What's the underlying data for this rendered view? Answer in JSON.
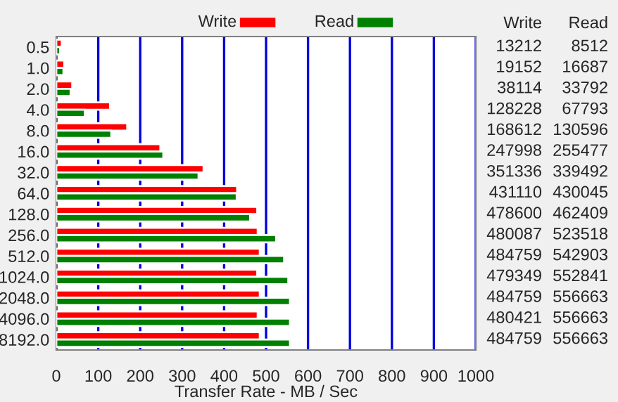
{
  "chart_data": [
    {
      "type": "bar",
      "orientation": "horizontal",
      "xlabel": "Transfer Rate - MB / Sec",
      "categories": [
        "0.5",
        "1.0",
        "2.0",
        "4.0",
        "8.0",
        "16.0",
        "32.0",
        "64.0",
        "128.0",
        "256.0",
        "512.0",
        "1024.0",
        "2048.0",
        "4096.0",
        "8192.0"
      ],
      "series": [
        {
          "name": "Write",
          "color": "#ff0000",
          "values": [
            13,
            19,
            38,
            128,
            169,
            248,
            351,
            431,
            479,
            480,
            485,
            479,
            485,
            480,
            485
          ]
        },
        {
          "name": "Read",
          "color": "#008000",
          "values": [
            9,
            17,
            34,
            68,
            131,
            255,
            339,
            430,
            462,
            524,
            543,
            553,
            557,
            557,
            557
          ]
        }
      ],
      "xlim": [
        0,
        1000
      ],
      "xticks": [
        0,
        100,
        200,
        300,
        400,
        500,
        600,
        700,
        800,
        900,
        1000
      ],
      "grid": "x",
      "legend": "top"
    },
    {
      "type": "other",
      "categories": [
        "Write",
        "Read"
      ],
      "annotations": [
        "13212",
        "8512",
        "19152",
        "16687",
        "38114",
        "33792",
        "128228",
        "67793",
        "168612",
        "130596",
        "247998",
        "255477",
        "351336",
        "339492",
        "431110",
        "430045",
        "478600",
        "462409",
        "480087",
        "523518",
        "484759",
        "542903",
        "479349",
        "552841",
        "484759",
        "556663",
        "480421",
        "556663",
        "484759",
        "556663"
      ]
    }
  ]
}
